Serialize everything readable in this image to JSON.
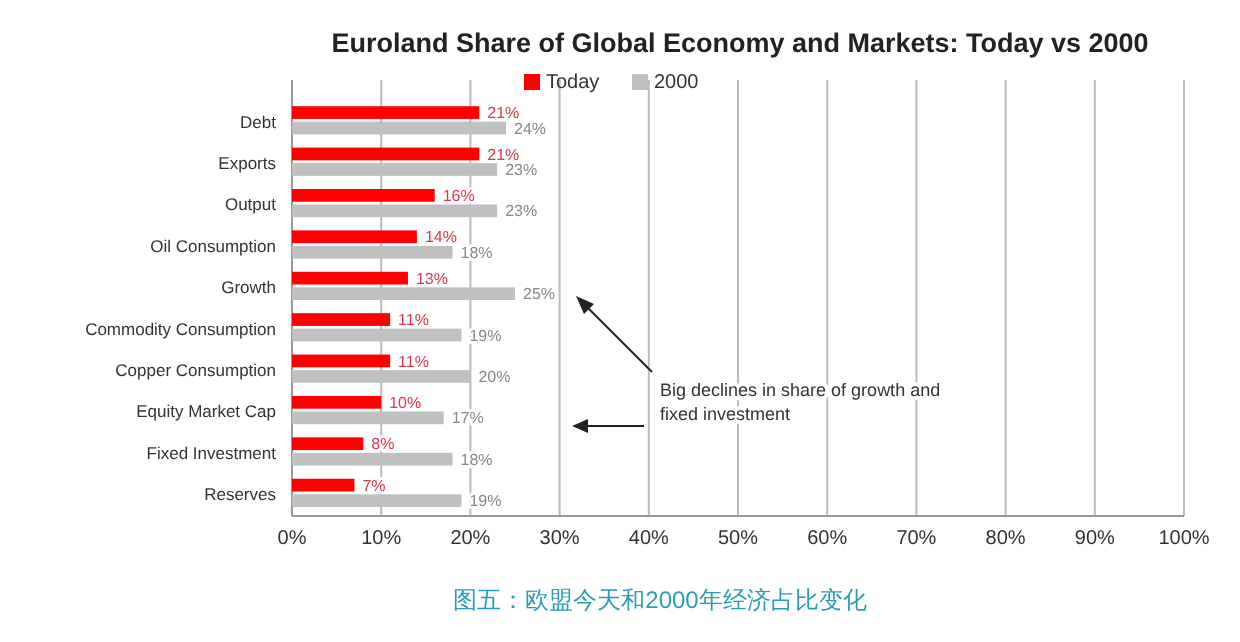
{
  "chart_data": {
    "type": "bar",
    "orientation": "horizontal",
    "title": "Euroland Share of Global Economy and Markets: Today vs 2000",
    "categories": [
      "Debt",
      "Exports",
      "Output",
      "Oil Consumption",
      "Growth",
      "Commodity Consumption",
      "Copper Consumption",
      "Equity Market Cap",
      "Fixed Investment",
      "Reserves"
    ],
    "series": [
      {
        "name": "Today",
        "color": "#ff0000",
        "values": [
          21,
          21,
          16,
          14,
          13,
          11,
          11,
          10,
          8,
          7
        ],
        "value_labels": [
          "21%",
          "21%",
          "16%",
          "14%",
          "13%",
          "11%",
          "11%",
          "10%",
          "8%",
          "7%"
        ]
      },
      {
        "name": "2000",
        "color": "#c0c0c0",
        "values": [
          24,
          23,
          23,
          18,
          25,
          19,
          20,
          17,
          18,
          19
        ],
        "value_labels": [
          "24%",
          "23%",
          "23%",
          "18%",
          "25%",
          "19%",
          "20%",
          "17%",
          "18%",
          "19%"
        ]
      }
    ],
    "xlim": [
      0,
      100
    ],
    "xticks": [
      {
        "value": 0,
        "label": "0%"
      },
      {
        "value": 10,
        "label": "10%"
      },
      {
        "value": 20,
        "label": "20%"
      },
      {
        "value": 30,
        "label": "30%"
      },
      {
        "value": 40,
        "label": "40%"
      },
      {
        "value": 50,
        "label": "50%"
      },
      {
        "value": 60,
        "label": "60%"
      },
      {
        "value": 70,
        "label": "70%"
      },
      {
        "value": 80,
        "label": "80%"
      },
      {
        "value": 90,
        "label": "90%"
      },
      {
        "value": 100,
        "label": "100%"
      }
    ],
    "grid": "x",
    "legend": "top",
    "annotations": [
      "Big declines in share of growth and fixed investment",
      "图五：欧盟今天和2000年经济占比变化"
    ]
  }
}
